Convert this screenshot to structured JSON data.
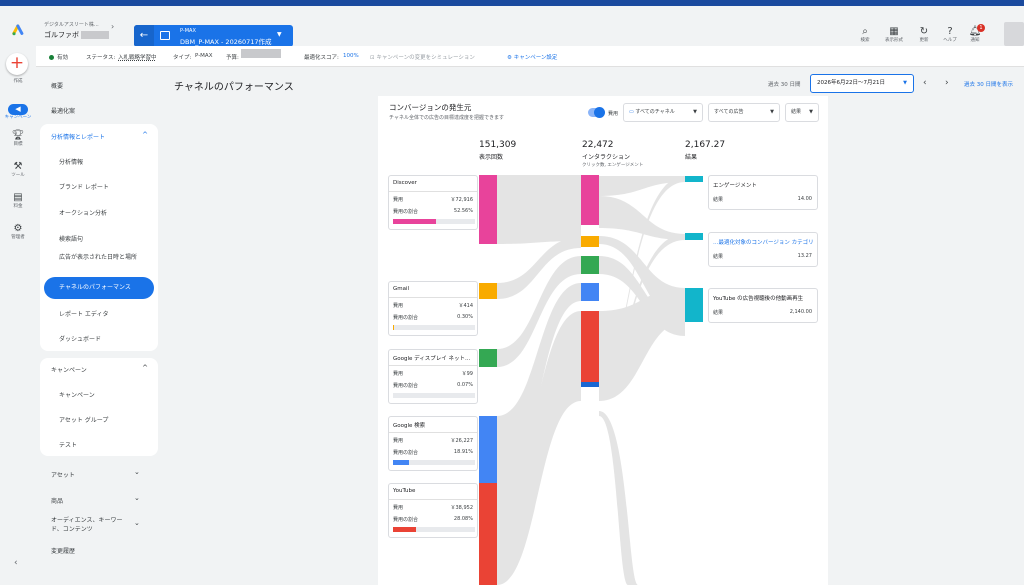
{
  "header": {
    "breadcrumb": "デジタルアスリート株...",
    "account": "ゴルファボ",
    "campaign_type": "P-MAX",
    "campaign_name": "DBM_P-MAX - 20260717作成",
    "actions": [
      {
        "icon": "search-icon",
        "label": "検索"
      },
      {
        "icon": "view-icon",
        "label": "表示形式"
      },
      {
        "icon": "refresh-icon",
        "label": "更新"
      },
      {
        "icon": "help-icon",
        "label": "ヘルプ"
      },
      {
        "icon": "bell-icon",
        "label": "通知",
        "badge": "1"
      }
    ]
  },
  "rail": {
    "create_label": "作成",
    "items": [
      {
        "icon": "campaign-icon",
        "label": "キャンペーン",
        "active": true
      },
      {
        "icon": "goal-icon",
        "label": "目標"
      },
      {
        "icon": "tools-icon",
        "label": "ツール"
      },
      {
        "icon": "billing-icon",
        "label": "料金"
      },
      {
        "icon": "admin-icon",
        "label": "管理者"
      }
    ]
  },
  "status_bar": {
    "status_value": "有効",
    "status_label": "ステータス:",
    "status_text": "入札戦略学習中",
    "type_label": "タイプ:",
    "type_value": "P-MAX",
    "budget_label": "予算:",
    "opt_score_label": "最適化スコア:",
    "opt_score_value": "100%",
    "simulate": "キャンペーンの変更をシミュレーション",
    "settings": "キャンペーン設定"
  },
  "sidenav": {
    "top_items": [
      "概要",
      "最適化案"
    ],
    "analytics_title": "分析情報とレポート",
    "analytics_items": [
      "分析情報",
      "ブランド レポート",
      "オークション分析",
      "検索語句",
      "広告が表示された日時と場所",
      "チャネルのパフォーマンス",
      "レポート エディタ",
      "ダッシュボード"
    ],
    "campaign_title": "キャンペーン",
    "campaign_items": [
      "キャンペーン",
      "アセット グループ",
      "テスト"
    ],
    "bottom_items": [
      "アセット",
      "商品",
      "オーディエンス、キーワード、コンテンツ",
      "変更履歴"
    ]
  },
  "main": {
    "title": "チャネルのパフォーマンス",
    "period_label": "過去 30 日間",
    "date_range": "2026年6月22日～7月21日",
    "show_30": "過去 30 日間を表示"
  },
  "card": {
    "title": "コンバージョンの発生元",
    "subtitle": "チャネル全体での広告の目標達成度を把握できます",
    "toggle_label": "費用",
    "dd_channels": "すべてのチャネル",
    "dd_ads": "すべての広告",
    "dd_results": "結果",
    "col1": {
      "value": "151,309",
      "label": "表示回数"
    },
    "col2": {
      "value": "22,472",
      "label": "インタラクション",
      "sub": "クリック数, エンゲージメント"
    },
    "col3": {
      "value": "2,167.27",
      "label": "結果"
    },
    "cost_label": "費用",
    "share_label": "費用の割合",
    "result_label": "結果",
    "sources": [
      {
        "name": "Discover",
        "cost": "￥72,916",
        "share": "52.56%",
        "share_value": 52.56,
        "color": "#e8439b"
      },
      {
        "name": "Gmail",
        "cost": "￥414",
        "share": "0.30%",
        "share_value": 0.3,
        "color": "#f9ab00"
      },
      {
        "name": "Google ディスプレイ ネット...",
        "cost": "￥99",
        "share": "0.07%",
        "share_value": 0.07,
        "color": "#34a853"
      },
      {
        "name": "Google 検索",
        "cost": "￥26,227",
        "share": "18.91%",
        "share_value": 18.91,
        "color": "#4285f4"
      },
      {
        "name": "YouTube",
        "cost": "￥38,952",
        "share": "28.08%",
        "share_value": 28.08,
        "color": "#ea4335"
      }
    ],
    "results": [
      {
        "name": "エンゲージメント",
        "value": "14.00",
        "link": false
      },
      {
        "name": "…最適化対象のコンバージョン カテゴリ",
        "value": "13.27",
        "link": true
      },
      {
        "name": "YouTube の広告視聴後の他動画再生",
        "value": "2,140.00",
        "link": false
      }
    ],
    "result_color": "#12b5cb"
  }
}
